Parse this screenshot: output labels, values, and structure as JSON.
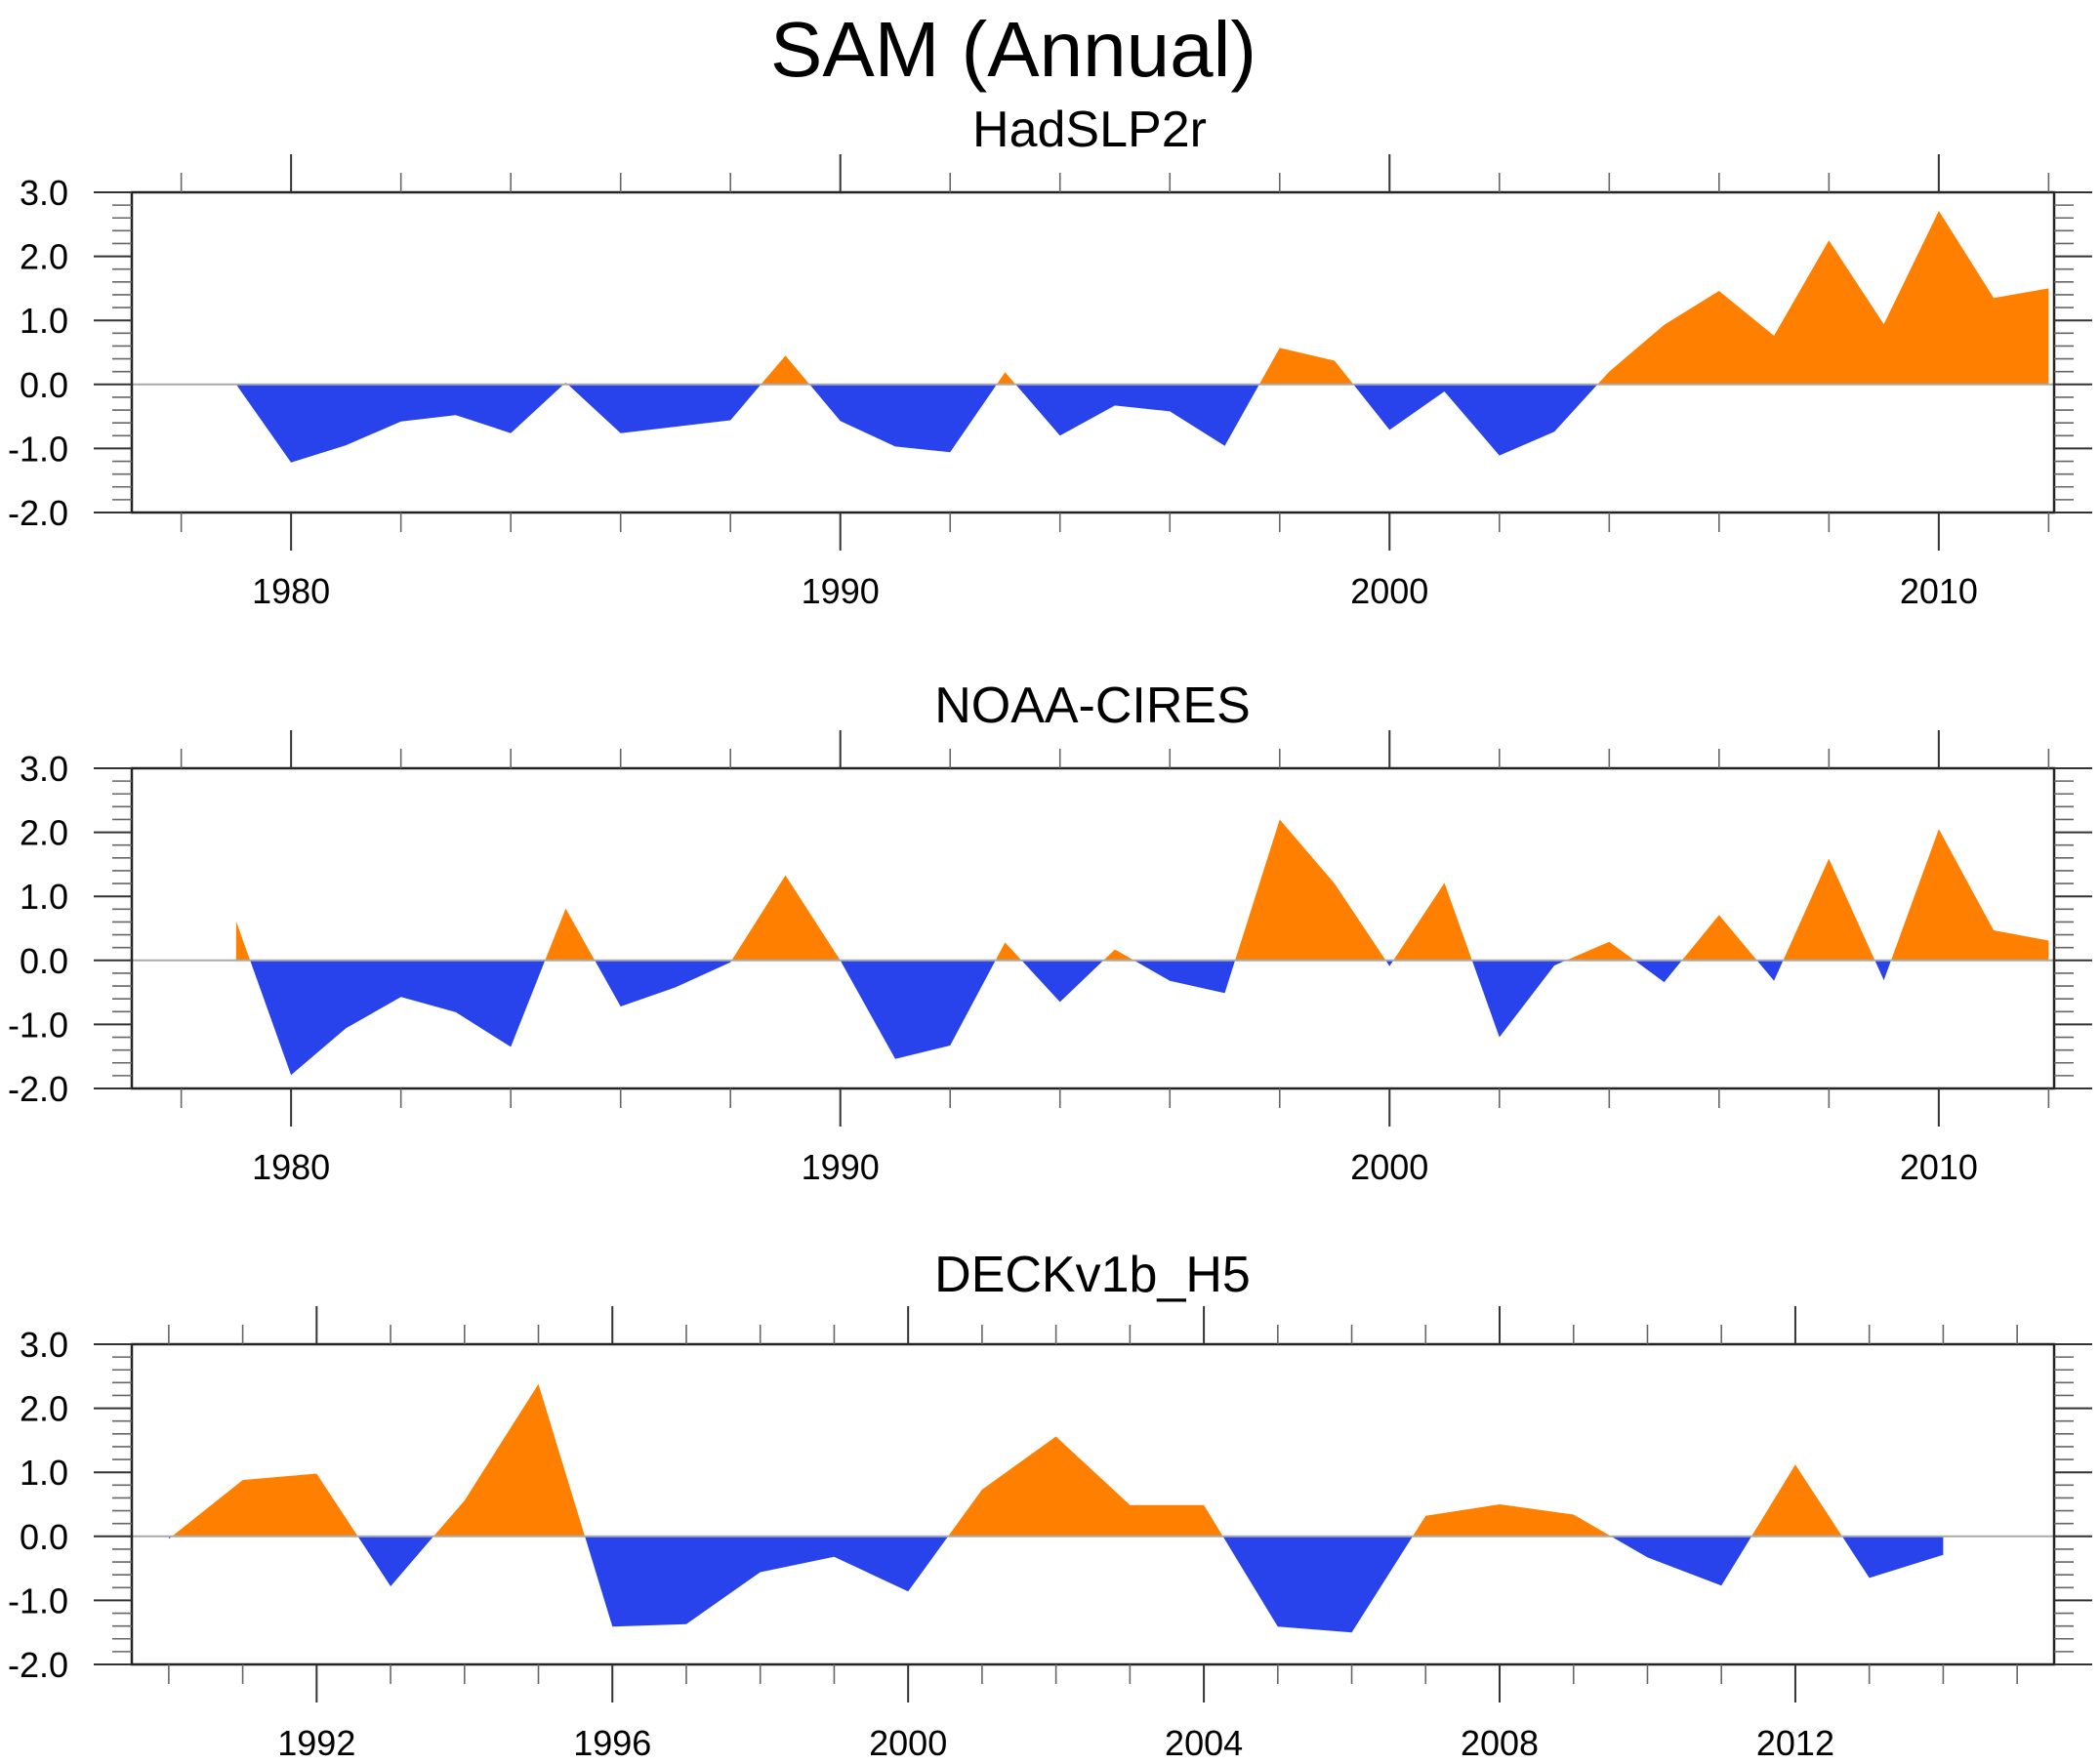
{
  "chart_data": {
    "type": "area",
    "title": "SAM (Annual)",
    "colors": {
      "positive": "#FF8000",
      "negative": "#2843EB",
      "zero_line": "#AAAAAA"
    },
    "panels": [
      {
        "title": "HadSLP2r",
        "xlabel": "",
        "ylabel": "",
        "ylim": [
          -2.0,
          3.0
        ],
        "yticks": [
          3.0,
          2.0,
          1.0,
          0.0,
          -1.0,
          -2.0
        ],
        "ytick_labels": [
          "3.0",
          "2.0",
          "1.0",
          "0.0",
          "-1.0",
          "-2.0"
        ],
        "xlim": [
          1977.1,
          2012.1
        ],
        "xticks_major": [
          1980,
          1990,
          2000,
          2010
        ],
        "xtick_labels": [
          "1980",
          "1990",
          "2000",
          "2010"
        ],
        "xtick_minor_step": 2,
        "x": [
          1979,
          1980,
          1981,
          1982,
          1983,
          1984,
          1985,
          1986,
          1987,
          1988,
          1989,
          1990,
          1991,
          1992,
          1993,
          1994,
          1995,
          1996,
          1997,
          1998,
          1999,
          2000,
          2001,
          2002,
          2003,
          2004,
          2005,
          2006,
          2007,
          2008,
          2009,
          2010,
          2011,
          2012
        ],
        "values": [
          0.0,
          -1.22,
          -0.95,
          -0.58,
          -0.48,
          -0.76,
          0.03,
          -0.76,
          -0.66,
          -0.56,
          0.45,
          -0.57,
          -0.97,
          -1.06,
          0.19,
          -0.8,
          -0.33,
          -0.42,
          -0.96,
          0.57,
          0.37,
          -0.71,
          -0.11,
          -1.11,
          -0.74,
          0.2,
          0.93,
          1.46,
          0.76,
          2.25,
          0.94,
          2.71,
          1.35,
          1.5
        ]
      },
      {
        "title": "NOAA-CIRES",
        "xlabel": "",
        "ylabel": "",
        "ylim": [
          -2.0,
          3.0
        ],
        "yticks": [
          3.0,
          2.0,
          1.0,
          0.0,
          -1.0,
          -2.0
        ],
        "ytick_labels": [
          "3.0",
          "2.0",
          "1.0",
          "0.0",
          "-1.0",
          "-2.0"
        ],
        "xlim": [
          1977.1,
          2012.1
        ],
        "xticks_major": [
          1980,
          1990,
          2000,
          2010
        ],
        "xtick_labels": [
          "1980",
          "1990",
          "2000",
          "2010"
        ],
        "xtick_minor_step": 2,
        "x": [
          1979,
          1980,
          1981,
          1982,
          1983,
          1984,
          1985,
          1986,
          1987,
          1988,
          1989,
          1990,
          1991,
          1992,
          1993,
          1994,
          1995,
          1996,
          1997,
          1998,
          1999,
          2000,
          2001,
          2002,
          2003,
          2004,
          2005,
          2006,
          2007,
          2008,
          2009,
          2010,
          2011,
          2012
        ],
        "values": [
          0.61,
          -1.79,
          -1.06,
          -0.57,
          -0.81,
          -1.35,
          0.81,
          -0.72,
          -0.42,
          -0.03,
          1.33,
          0.0,
          -1.54,
          -1.33,
          0.28,
          -0.65,
          0.17,
          -0.32,
          -0.51,
          2.2,
          1.2,
          -0.09,
          1.21,
          -1.2,
          -0.08,
          0.29,
          -0.34,
          0.71,
          -0.32,
          1.59,
          -0.31,
          2.05,
          0.47,
          0.31
        ]
      },
      {
        "title": "DECKv1b_H5",
        "xlabel": "",
        "ylabel": "",
        "ylim": [
          -2.0,
          3.0
        ],
        "yticks": [
          3.0,
          2.0,
          1.0,
          0.0,
          -1.0,
          -2.0
        ],
        "ytick_labels": [
          "3.0",
          "2.0",
          "1.0",
          "0.0",
          "-1.0",
          "-2.0"
        ],
        "xlim": [
          1989.5,
          2015.5
        ],
        "xticks_major": [
          1992,
          1996,
          2000,
          2004,
          2008,
          2012
        ],
        "xtick_labels": [
          "1992",
          "1996",
          "2000",
          "2004",
          "2008",
          "2012"
        ],
        "xtick_minor_step": 1,
        "x": [
          1990,
          1991,
          1992,
          1993,
          1994,
          1995,
          1996,
          1997,
          1998,
          1999,
          2000,
          2001,
          2002,
          2003,
          2004,
          2005,
          2006,
          2007,
          2008,
          2009,
          2010,
          2011,
          2012,
          2013,
          2014
        ],
        "values": [
          -0.04,
          0.88,
          0.98,
          -0.78,
          0.56,
          2.38,
          -1.41,
          -1.37,
          -0.56,
          -0.32,
          -0.86,
          0.73,
          1.56,
          0.49,
          0.49,
          -1.41,
          -1.5,
          0.32,
          0.5,
          0.34,
          -0.33,
          -0.77,
          1.12,
          -0.65,
          -0.29
        ]
      }
    ]
  }
}
